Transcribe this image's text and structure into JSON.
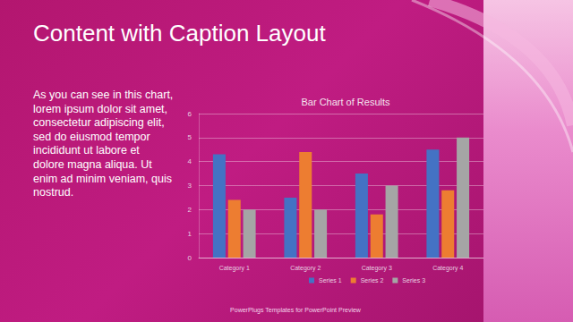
{
  "slide": {
    "title": "Content with Caption Layout",
    "caption": [
      "As you can see in this chart,",
      "lorem ipsum dolor sit amet,",
      "consectetur adipiscing elit,",
      "sed do eiusmod tempor",
      "incididunt ut labore et",
      "dolore magna aliqua. Ut",
      "enim ad minim veniam, quis",
      "nostrud."
    ],
    "footer": "PowerPlugs Templates for PowerPoint Preview"
  },
  "chart_data": {
    "type": "bar",
    "title": "Bar Chart of Results",
    "categories": [
      "Category 1",
      "Category 2",
      "Category 3",
      "Category 4"
    ],
    "series": [
      {
        "name": "Series 1",
        "color": "#4472c4",
        "values": [
          4.3,
          2.5,
          3.5,
          4.5
        ]
      },
      {
        "name": "Series 2",
        "color": "#ed7d31",
        "values": [
          2.4,
          4.4,
          1.8,
          2.8
        ]
      },
      {
        "name": "Series 3",
        "color": "#a5a5a5",
        "values": [
          2,
          2,
          3,
          5
        ]
      }
    ],
    "ylim": [
      0,
      6
    ],
    "yticks": [
      0,
      1,
      2,
      3,
      4,
      5,
      6
    ],
    "grid": true,
    "legend": "bottom"
  }
}
